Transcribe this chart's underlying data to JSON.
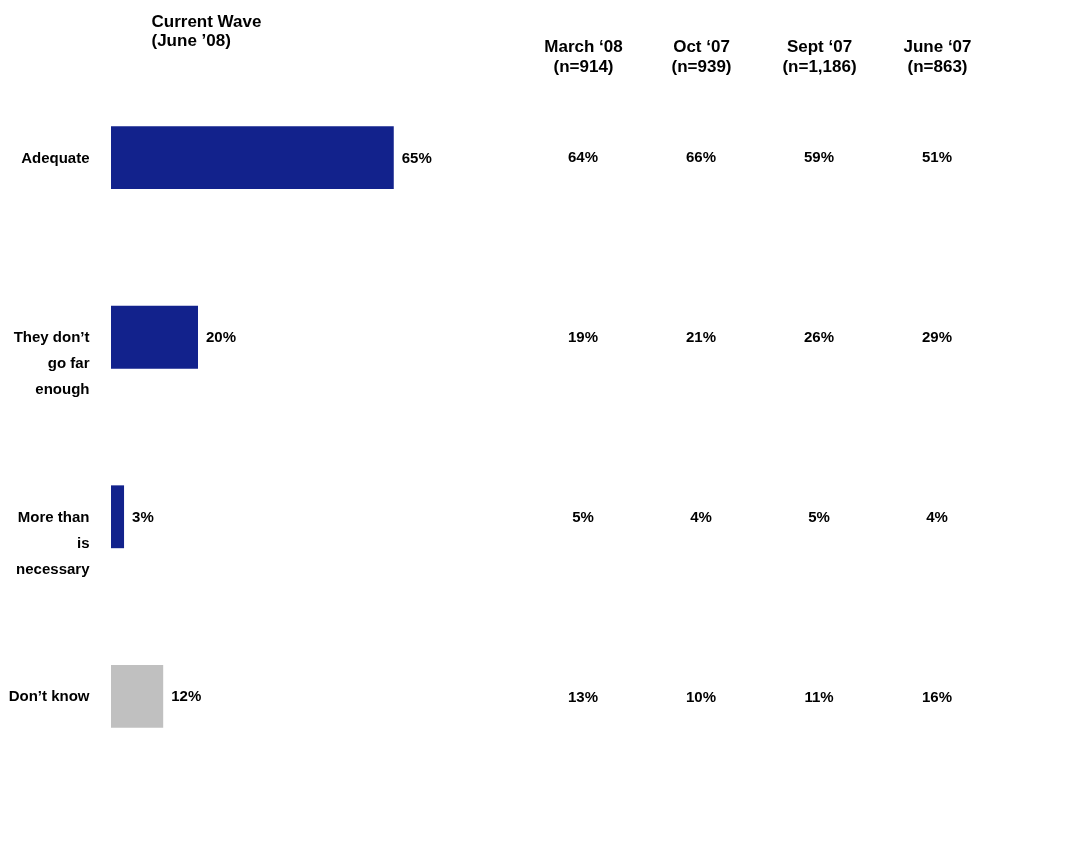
{
  "chart_data": {
    "type": "bar",
    "orientation": "horizontal",
    "categories": [
      "Adequate",
      "They don’t go far enough",
      "More than is necessary",
      "Don’t know"
    ],
    "series": [
      {
        "name": "Current Wave (June ’08)",
        "colors": [
          "#12228c",
          "#12228c",
          "#12228c",
          "#c0c0c0"
        ],
        "values": [
          65,
          20,
          3,
          12
        ],
        "value_labels": [
          "65%",
          "20%",
          "3%",
          "12%"
        ]
      }
    ],
    "annotations": [
      "March ‘08 (n=914)",
      "64%",
      "19%",
      "5%",
      "13%",
      "Oct ‘07 (n=939)",
      "66%",
      "21%",
      "4%",
      "10%",
      "Sept ‘07 (n=1,186)",
      "59%",
      "26%",
      "5%",
      "11%",
      "June ‘07 (n=863)",
      "51%",
      "29%",
      "4%",
      "16%"
    ],
    "tick_labels": "y",
    "grid": false
  }
}
